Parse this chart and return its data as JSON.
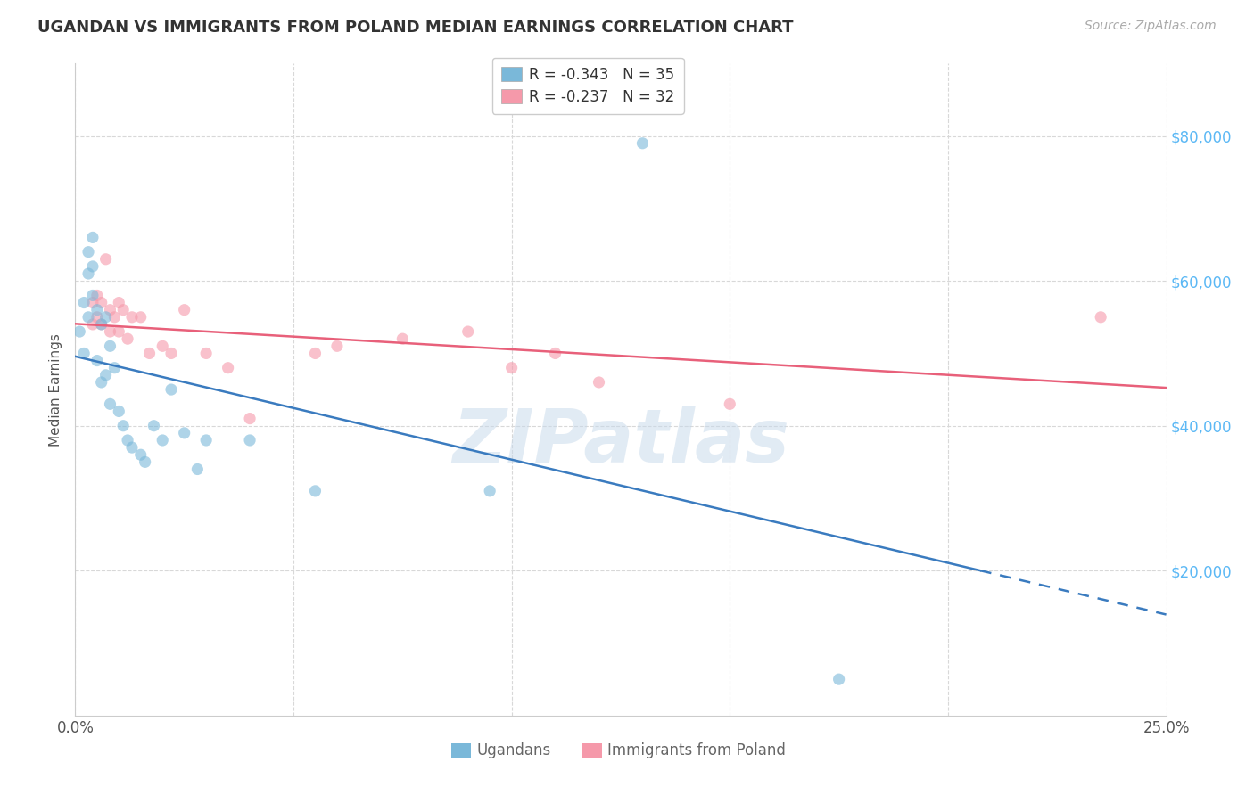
{
  "title": "UGANDAN VS IMMIGRANTS FROM POLAND MEDIAN EARNINGS CORRELATION CHART",
  "source": "Source: ZipAtlas.com",
  "ylabel": "Median Earnings",
  "y_tick_labels": [
    "$20,000",
    "$40,000",
    "$60,000",
    "$80,000"
  ],
  "y_tick_values": [
    20000,
    40000,
    60000,
    80000
  ],
  "xlim": [
    0.0,
    0.25
  ],
  "ylim": [
    0,
    90000
  ],
  "background_color": "#ffffff",
  "grid_color": "#d8d8d8",
  "watermark": "ZIPatlas",
  "legend_line1": "R = -0.343   N = 35",
  "legend_line2": "R = -0.237   N = 32",
  "legend_labels": [
    "Ugandans",
    "Immigrants from Poland"
  ],
  "ugandan_x": [
    0.001,
    0.002,
    0.002,
    0.003,
    0.003,
    0.003,
    0.004,
    0.004,
    0.004,
    0.005,
    0.005,
    0.006,
    0.006,
    0.007,
    0.007,
    0.008,
    0.008,
    0.009,
    0.01,
    0.011,
    0.012,
    0.013,
    0.015,
    0.016,
    0.018,
    0.02,
    0.022,
    0.025,
    0.028,
    0.03,
    0.04,
    0.055,
    0.095,
    0.13,
    0.175
  ],
  "ugandan_y": [
    53000,
    57000,
    50000,
    64000,
    61000,
    55000,
    66000,
    62000,
    58000,
    56000,
    49000,
    54000,
    46000,
    55000,
    47000,
    51000,
    43000,
    48000,
    42000,
    40000,
    38000,
    37000,
    36000,
    35000,
    40000,
    38000,
    45000,
    39000,
    34000,
    38000,
    38000,
    31000,
    31000,
    79000,
    5000
  ],
  "poland_x": [
    0.004,
    0.004,
    0.005,
    0.005,
    0.006,
    0.006,
    0.007,
    0.008,
    0.008,
    0.009,
    0.01,
    0.01,
    0.011,
    0.012,
    0.013,
    0.015,
    0.017,
    0.02,
    0.022,
    0.025,
    0.03,
    0.035,
    0.04,
    0.055,
    0.06,
    0.075,
    0.09,
    0.1,
    0.11,
    0.12,
    0.15,
    0.235
  ],
  "poland_y": [
    57000,
    54000,
    58000,
    55000,
    57000,
    54000,
    63000,
    56000,
    53000,
    55000,
    57000,
    53000,
    56000,
    52000,
    55000,
    55000,
    50000,
    51000,
    50000,
    56000,
    50000,
    48000,
    41000,
    50000,
    51000,
    52000,
    53000,
    48000,
    50000,
    46000,
    43000,
    55000
  ],
  "ugandan_color": "#7ab8d9",
  "poland_color": "#f599aa",
  "ugandan_line_color": "#3a7bbf",
  "poland_line_color": "#e8607a",
  "point_alpha": 0.6,
  "point_size": 90,
  "solid_threshold": 20000
}
